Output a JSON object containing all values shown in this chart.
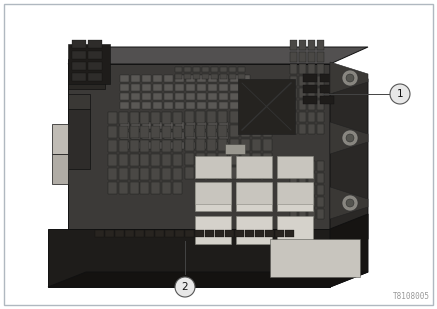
{
  "fig_width": 4.37,
  "fig_height": 3.09,
  "dpi": 100,
  "bg_color": "#ffffff",
  "border_color": "#b0b8c0",
  "border_linewidth": 1.0,
  "part_number": "T8108005",
  "part_number_color": "#999999",
  "part_number_fontsize": 5.5,
  "callout_1_text": "1",
  "callout_2_text": "2",
  "callout_fontsize": 7.5,
  "box_main_face": "#3c3a38",
  "box_top_face": "#525050",
  "box_right_face": "#2a2826",
  "box_bottom_tray_front": "#1e1c1a",
  "box_bottom_tray_side": "#161412",
  "box_bottom_tray_bottom": "#141210",
  "box_outline": "#111111",
  "fuse_dark": "#4a4845",
  "fuse_medium": "#5a5855",
  "fuse_light_row": "#484644",
  "relay_white": "#c8c5be",
  "relay_white2": "#d5d2cb",
  "connector_dark": "#2e2c2a",
  "cover_dark": "#252320",
  "mounting_tab": "#3a3835",
  "screw_hole_color": "#888680",
  "line_color": "#444444",
  "callout_circle_bg": "#e8e8e8",
  "callout_circle_edge": "#555555"
}
